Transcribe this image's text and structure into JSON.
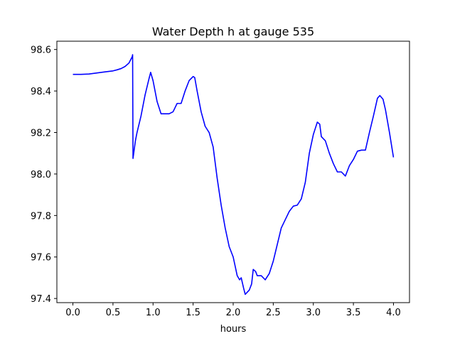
{
  "chart_data": {
    "type": "line",
    "title": "Water Depth h at gauge 535",
    "xlabel": "hours",
    "ylabel": "",
    "xlim": [
      -0.2,
      4.2
    ],
    "ylim": [
      97.38,
      98.64
    ],
    "xticks": [
      0.0,
      0.5,
      1.0,
      1.5,
      2.0,
      2.5,
      3.0,
      3.5,
      4.0
    ],
    "xtick_labels": [
      "0.0",
      "0.5",
      "1.0",
      "1.5",
      "2.0",
      "2.5",
      "3.0",
      "3.5",
      "4.0"
    ],
    "yticks": [
      97.4,
      97.6,
      97.8,
      98.0,
      98.2,
      98.4,
      98.6
    ],
    "ytick_labels": [
      "97.4",
      "97.6",
      "97.8",
      "98.0",
      "98.2",
      "98.4",
      "98.6"
    ],
    "grid": false,
    "legend": "none",
    "series": [
      {
        "color": "#0000ff",
        "x": [
          0.0,
          0.1,
          0.2,
          0.3,
          0.4,
          0.5,
          0.55,
          0.6,
          0.65,
          0.7,
          0.74,
          0.745,
          0.75,
          0.78,
          0.8,
          0.85,
          0.9,
          0.95,
          0.97,
          1.0,
          1.05,
          1.1,
          1.15,
          1.2,
          1.25,
          1.3,
          1.35,
          1.4,
          1.45,
          1.5,
          1.52,
          1.55,
          1.6,
          1.65,
          1.7,
          1.75,
          1.8,
          1.85,
          1.9,
          1.95,
          2.0,
          2.05,
          2.08,
          2.1,
          2.13,
          2.15,
          2.2,
          2.23,
          2.25,
          2.28,
          2.3,
          2.35,
          2.4,
          2.45,
          2.5,
          2.55,
          2.6,
          2.65,
          2.7,
          2.75,
          2.8,
          2.85,
          2.9,
          2.95,
          3.0,
          3.05,
          3.08,
          3.1,
          3.15,
          3.2,
          3.25,
          3.3,
          3.35,
          3.4,
          3.45,
          3.5,
          3.55,
          3.6,
          3.65,
          3.7,
          3.75,
          3.8,
          3.83,
          3.87,
          3.9,
          3.95,
          4.0
        ],
        "y": [
          98.48,
          98.48,
          98.482,
          98.487,
          98.492,
          98.497,
          98.502,
          98.508,
          98.518,
          98.535,
          98.565,
          98.575,
          98.075,
          98.16,
          98.2,
          98.28,
          98.38,
          98.46,
          98.49,
          98.45,
          98.35,
          98.29,
          98.29,
          98.29,
          98.3,
          98.34,
          98.34,
          98.4,
          98.45,
          98.47,
          98.465,
          98.4,
          98.3,
          98.23,
          98.2,
          98.13,
          97.98,
          97.85,
          97.74,
          97.65,
          97.6,
          97.51,
          97.49,
          97.5,
          97.45,
          97.42,
          97.44,
          97.47,
          97.54,
          97.53,
          97.51,
          97.51,
          97.49,
          97.52,
          97.58,
          97.66,
          97.74,
          97.78,
          97.82,
          97.845,
          97.85,
          97.88,
          97.96,
          98.1,
          98.19,
          98.25,
          98.24,
          98.18,
          98.16,
          98.1,
          98.05,
          98.01,
          98.01,
          97.99,
          98.04,
          98.07,
          98.11,
          98.115,
          98.115,
          98.2,
          98.28,
          98.365,
          98.378,
          98.36,
          98.31,
          98.2,
          98.08
        ]
      }
    ]
  }
}
